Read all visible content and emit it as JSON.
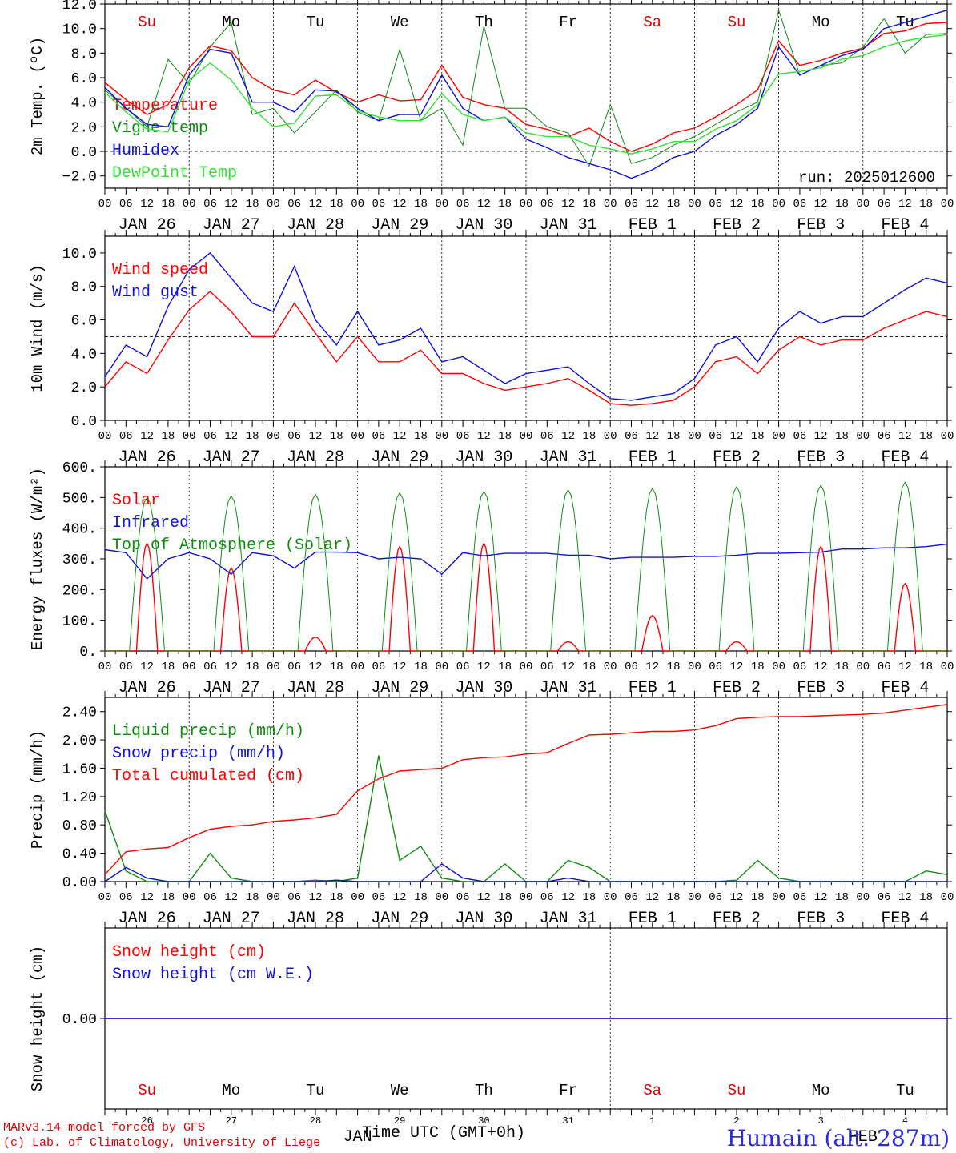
{
  "run_label": "run: 2025012600",
  "date_labels": [
    "JAN 26",
    "JAN 27",
    "JAN 28",
    "JAN 29",
    "JAN 30",
    "JAN 31",
    "FEB  1",
    "FEB  2",
    "FEB  3",
    "FEB  4"
  ],
  "day_names": [
    "Su",
    "Mo",
    "Tu",
    "We",
    "Th",
    "Fr",
    "Sa",
    "Su",
    "Mo",
    "Tu"
  ],
  "weekend_color": "#e00000",
  "hour_ticks": [
    "00",
    "06",
    "12",
    "18"
  ],
  "day_numbers": [
    "26",
    "27",
    "28",
    "29",
    "30",
    "31",
    "1",
    "2",
    "3",
    "4"
  ],
  "month_labels": {
    "jan": "JAN",
    "feb": "FEB"
  },
  "x_title": "Time UTC (GMT+0h)",
  "footer": {
    "line1": "MARv3.14 model forced by GFS",
    "line2": "(c) Lab. of Climatology, University of Liege",
    "station": "Humain (alt. 287m)"
  },
  "chart_data": [
    {
      "type": "line",
      "ylabel": "2m Temp. (ºC)",
      "ylim": [
        -3.0,
        12.0
      ],
      "yticks": [
        "12.0",
        "10.0",
        "8.0",
        "6.0",
        "4.0",
        "2.0",
        "0.0",
        "−2.0"
      ],
      "ytick_values": [
        12,
        10,
        8,
        6,
        4,
        2,
        0,
        -2
      ],
      "ref_line": 0.0,
      "x_hours": [
        0,
        6,
        12,
        18,
        24,
        30,
        36,
        42,
        48,
        54,
        60,
        66,
        72,
        78,
        84,
        90,
        96,
        102,
        108,
        114,
        120,
        126,
        132,
        138,
        144,
        150,
        156,
        162,
        168,
        174,
        180,
        186,
        192,
        198,
        204,
        210,
        216,
        222,
        228,
        234,
        240
      ],
      "series": [
        {
          "name": "Temperature",
          "color": "#ff0000",
          "values": [
            5.6,
            4.2,
            3.0,
            3.8,
            6.8,
            8.6,
            8.2,
            6.0,
            5.0,
            4.6,
            5.8,
            4.8,
            4.0,
            4.6,
            4.1,
            4.2,
            7.0,
            4.4,
            3.8,
            3.5,
            2.2,
            1.8,
            1.2,
            1.9,
            0.8,
            0.0,
            0.6,
            1.5,
            1.9,
            2.8,
            3.8,
            5.0,
            9.0,
            7.0,
            7.4,
            8.0,
            8.4,
            9.6,
            9.8,
            10.4,
            10.5
          ]
        },
        {
          "name": "Vigne temp",
          "color": "#118c11",
          "values": [
            5.0,
            3.5,
            2.0,
            7.5,
            5.5,
            8.5,
            10.5,
            3.0,
            3.5,
            1.5,
            3.2,
            5.0,
            3.2,
            2.5,
            8.3,
            2.5,
            3.5,
            0.5,
            10.2,
            3.5,
            3.5,
            2.0,
            1.5,
            -1.2,
            3.8,
            -1.0,
            -0.5,
            0.5,
            1.2,
            2.2,
            3.2,
            4.0,
            11.5,
            6.2,
            7.0,
            7.2,
            8.5,
            10.8,
            8.0,
            9.5,
            9.6
          ]
        },
        {
          "name": "Humidex",
          "color": "#1010e0",
          "values": [
            5.2,
            3.5,
            2.2,
            2.0,
            6.2,
            8.3,
            8.0,
            4.0,
            4.0,
            3.2,
            5.0,
            4.9,
            3.5,
            2.5,
            3.0,
            3.0,
            6.2,
            3.5,
            2.5,
            2.8,
            1.0,
            0.3,
            -0.5,
            -1.0,
            -1.5,
            -2.2,
            -1.5,
            -0.5,
            0.0,
            1.3,
            2.2,
            3.5,
            8.5,
            6.2,
            7.0,
            7.8,
            8.3,
            10.0,
            10.5,
            11.0,
            11.5
          ]
        },
        {
          "name": "DewPoint Temp",
          "color": "#33e033",
          "values": [
            4.8,
            3.2,
            1.8,
            1.6,
            5.8,
            7.2,
            5.8,
            3.5,
            2.0,
            2.3,
            4.5,
            4.6,
            3.3,
            2.8,
            2.5,
            2.5,
            4.7,
            3.0,
            2.5,
            2.8,
            1.5,
            1.2,
            1.2,
            0.5,
            0.2,
            -0.2,
            0.2,
            0.8,
            0.8,
            1.8,
            2.5,
            3.8,
            6.3,
            6.5,
            6.8,
            7.5,
            7.8,
            8.5,
            9.0,
            9.3,
            9.5
          ]
        }
      ]
    },
    {
      "type": "line",
      "ylabel": "10m Wind (m/s)",
      "ylim": [
        0.0,
        11.0
      ],
      "yticks": [
        "10.0",
        "8.0",
        "6.0",
        "4.0",
        "2.0",
        "0.0"
      ],
      "ytick_values": [
        10,
        8,
        6,
        4,
        2,
        0
      ],
      "ref_line": 5.0,
      "x_hours": [
        0,
        6,
        12,
        18,
        24,
        30,
        36,
        42,
        48,
        54,
        60,
        66,
        72,
        78,
        84,
        90,
        96,
        102,
        108,
        114,
        120,
        126,
        132,
        138,
        144,
        150,
        156,
        162,
        168,
        174,
        180,
        186,
        192,
        198,
        204,
        210,
        216,
        222,
        228,
        234,
        240
      ],
      "series": [
        {
          "name": "Wind speed",
          "color": "#ff0000",
          "values": [
            2.0,
            3.5,
            2.8,
            4.8,
            6.6,
            7.7,
            6.5,
            5.0,
            5.0,
            7.0,
            5.2,
            3.5,
            5.0,
            3.5,
            3.5,
            4.2,
            2.8,
            2.8,
            2.2,
            1.8,
            2.0,
            2.2,
            2.5,
            1.8,
            1.0,
            0.9,
            1.0,
            1.2,
            2.0,
            3.5,
            3.8,
            2.8,
            4.2,
            5.0,
            4.5,
            4.8,
            4.8,
            5.5,
            6.0,
            6.5,
            6.2
          ]
        },
        {
          "name": "Wind gust",
          "color": "#1010e0",
          "values": [
            2.6,
            4.5,
            3.8,
            6.8,
            9.0,
            10.0,
            8.5,
            7.0,
            6.5,
            9.2,
            6.0,
            4.5,
            6.5,
            4.5,
            4.8,
            5.5,
            3.5,
            3.8,
            3.0,
            2.2,
            2.8,
            3.0,
            3.2,
            2.2,
            1.3,
            1.2,
            1.4,
            1.6,
            2.5,
            4.5,
            5.0,
            3.5,
            5.5,
            6.5,
            5.8,
            6.2,
            6.2,
            7.0,
            7.8,
            8.5,
            8.2
          ]
        }
      ]
    },
    {
      "type": "line",
      "ylabel": "Energy fluxes (W/m²)",
      "ylim": [
        0,
        600
      ],
      "yticks": [
        "600.",
        "500.",
        "400.",
        "300.",
        "200.",
        "100.",
        "0."
      ],
      "ytick_values": [
        600,
        500,
        400,
        300,
        200,
        100,
        0
      ],
      "ref_line": null,
      "series": [
        {
          "name": "Solar",
          "color": "#ff0000",
          "day_peaks": [
            350,
            270,
            45,
            340,
            350,
            30,
            115,
            30,
            340,
            220
          ]
        },
        {
          "name": "Infrared",
          "color": "#1010e0",
          "x_hours": [
            0,
            6,
            12,
            18,
            24,
            30,
            36,
            42,
            48,
            54,
            60,
            66,
            72,
            78,
            84,
            90,
            96,
            102,
            108,
            114,
            120,
            126,
            132,
            138,
            144,
            150,
            156,
            162,
            168,
            174,
            180,
            186,
            192,
            198,
            204,
            210,
            216,
            222,
            228,
            234,
            240
          ],
          "values": [
            330,
            320,
            235,
            300,
            320,
            300,
            250,
            320,
            310,
            270,
            322,
            322,
            320,
            300,
            305,
            300,
            250,
            320,
            310,
            318,
            318,
            318,
            312,
            312,
            300,
            305,
            305,
            305,
            308,
            308,
            312,
            318,
            318,
            320,
            322,
            332,
            332,
            336,
            336,
            340,
            348
          ]
        },
        {
          "name": "Top of Atmosphere (Solar)",
          "color": "#118c11",
          "day_peaks": [
            500,
            505,
            510,
            515,
            520,
            525,
            530,
            535,
            540,
            550
          ]
        }
      ]
    },
    {
      "type": "line",
      "ylabel": "Precip (mm/h)",
      "ylim": [
        0.0,
        2.6
      ],
      "yticks": [
        "2.40",
        "2.00",
        "1.60",
        "1.20",
        "0.80",
        "0.40",
        "0.00"
      ],
      "ytick_values": [
        2.4,
        2.0,
        1.6,
        1.2,
        0.8,
        0.4,
        0.0
      ],
      "ref_line": null,
      "x_hours": [
        0,
        6,
        12,
        18,
        24,
        30,
        36,
        42,
        48,
        54,
        60,
        66,
        72,
        78,
        84,
        90,
        96,
        102,
        108,
        114,
        120,
        126,
        132,
        138,
        144,
        150,
        156,
        162,
        168,
        174,
        180,
        186,
        192,
        198,
        204,
        210,
        216,
        222,
        228,
        234,
        240
      ],
      "series": [
        {
          "name": "Liquid precip (mm/h)",
          "color": "#118c11",
          "values": [
            1.0,
            0.15,
            0.0,
            0.0,
            0.0,
            0.4,
            0.05,
            0.0,
            0.0,
            0.0,
            0.02,
            0.0,
            0.05,
            1.78,
            0.3,
            0.5,
            0.05,
            0.0,
            0.0,
            0.25,
            0.0,
            0.0,
            0.3,
            0.2,
            0.0,
            0.0,
            0.0,
            0.0,
            0.0,
            0.0,
            0.02,
            0.3,
            0.05,
            0.0,
            0.0,
            0.0,
            0.0,
            0.0,
            0.0,
            0.15,
            0.1
          ]
        },
        {
          "name": "Snow precip (mm/h)",
          "color": "#1010e0",
          "values": [
            0.0,
            0.2,
            0.05,
            0.0,
            0.0,
            0.0,
            0.0,
            0.0,
            0.0,
            0.0,
            0.0,
            0.02,
            0.0,
            0.0,
            0.0,
            0.0,
            0.25,
            0.05,
            0.0,
            0.0,
            0.0,
            0.0,
            0.05,
            0.0,
            0.0,
            0.0,
            0.0,
            0.0,
            0.0,
            0.0,
            0.0,
            0.0,
            0.0,
            0.0,
            0.0,
            0.0,
            0.0,
            0.0,
            0.0,
            0.0,
            0.0
          ]
        },
        {
          "name": "Total cumulated (cm)",
          "color": "#ff0000",
          "values": [
            0.1,
            0.42,
            0.46,
            0.48,
            0.62,
            0.74,
            0.78,
            0.8,
            0.85,
            0.87,
            0.9,
            0.95,
            1.28,
            1.45,
            1.56,
            1.58,
            1.6,
            1.72,
            1.75,
            1.76,
            1.8,
            1.82,
            1.95,
            2.07,
            2.08,
            2.1,
            2.12,
            2.12,
            2.14,
            2.2,
            2.3,
            2.32,
            2.33,
            2.33,
            2.34,
            2.35,
            2.36,
            2.38,
            2.42,
            2.46,
            2.5
          ]
        }
      ]
    },
    {
      "type": "line",
      "ylabel": "Snow height (cm)",
      "ylim": [
        -1.0,
        1.0
      ],
      "yticks": [
        "0.00"
      ],
      "ytick_values": [
        0.0
      ],
      "ref_line": null,
      "x_hours": [
        0,
        240
      ],
      "series": [
        {
          "name": "Snow height (cm)",
          "color": "#ff0000",
          "values": [
            0.0,
            0.0
          ]
        },
        {
          "name": "Snow height (cm W.E.)",
          "color": "#1010e0",
          "values": [
            0.0,
            0.0
          ]
        }
      ]
    }
  ]
}
